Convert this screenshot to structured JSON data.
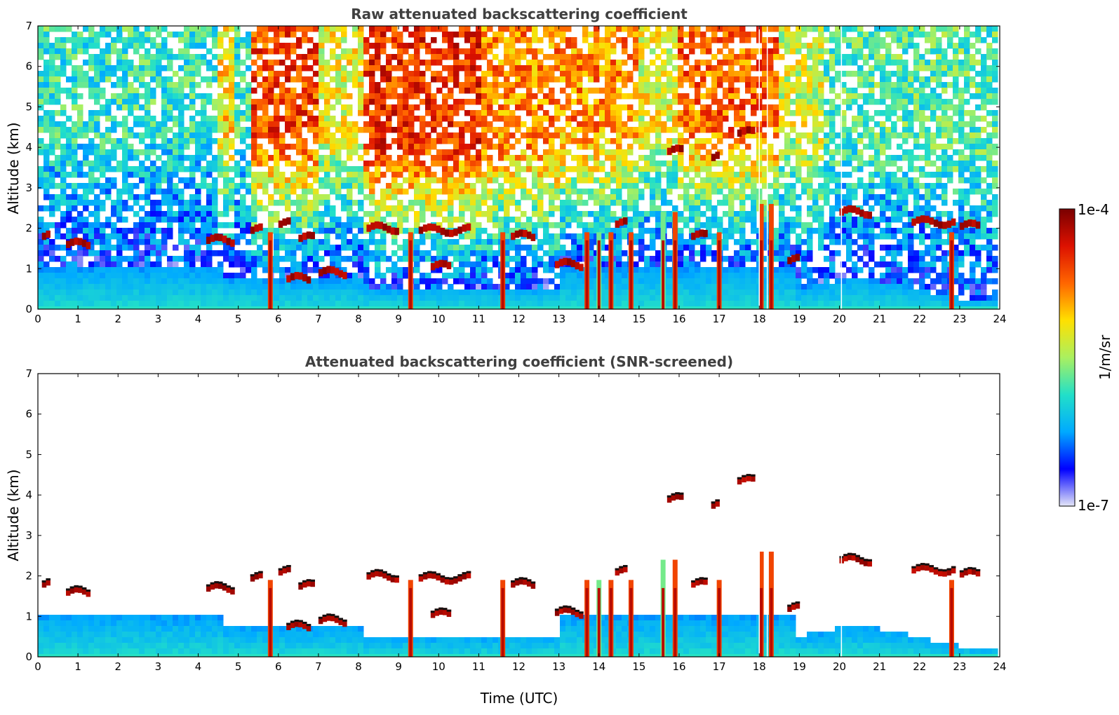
{
  "chart_data": [
    {
      "type": "heatmap",
      "title": "Raw attenuated backscattering coefficient",
      "xlabel": "",
      "ylabel": "Altitude (km)",
      "xlim": [
        0,
        24
      ],
      "ylim": [
        0,
        7
      ],
      "xticks": [
        "0",
        "1",
        "2",
        "3",
        "4",
        "5",
        "6",
        "7",
        "8",
        "9",
        "10",
        "11",
        "12",
        "13",
        "14",
        "15",
        "16",
        "17",
        "18",
        "19",
        "20",
        "21",
        "22",
        "23",
        "24"
      ],
      "yticks": [
        "0",
        "1",
        "2",
        "3",
        "4",
        "5",
        "6",
        "7"
      ],
      "screened": false
    },
    {
      "type": "heatmap",
      "title": "Attenuated backscattering coefficient (SNR-screened)",
      "xlabel": "Time (UTC)",
      "ylabel": "Altitude (km)",
      "xlim": [
        0,
        24
      ],
      "ylim": [
        0,
        7
      ],
      "xticks": [
        "0",
        "1",
        "2",
        "3",
        "4",
        "5",
        "6",
        "7",
        "8",
        "9",
        "10",
        "11",
        "12",
        "13",
        "14",
        "15",
        "16",
        "17",
        "18",
        "19",
        "20",
        "21",
        "22",
        "23",
        "24"
      ],
      "yticks": [
        "0",
        "1",
        "2",
        "3",
        "4",
        "5",
        "6",
        "7"
      ],
      "screened": true
    }
  ],
  "colorbar": {
    "max_label": "1e-4",
    "min_label": "1e-7",
    "unit_label": "1/m/sr",
    "scale": "log",
    "colors": [
      "#e4e6f7",
      "#0000ff",
      "#00aaff",
      "#22e0c8",
      "#aaf060",
      "#ffe000",
      "#ff6600",
      "#dd1100",
      "#7a0000"
    ]
  },
  "features": {
    "dense_columns": [
      5.8,
      9.3,
      11.6,
      13.7,
      14.0,
      14.3,
      14.8,
      15.6,
      15.9,
      17.0,
      18.05,
      18.3,
      22.8
    ],
    "cloud_layers": [
      {
        "t0": 0.1,
        "t1": 0.3,
        "z": 1.8
      },
      {
        "t0": 0.7,
        "t1": 1.3,
        "z": 1.6
      },
      {
        "t0": 4.2,
        "t1": 4.9,
        "z": 1.7
      },
      {
        "t0": 5.3,
        "t1": 5.6,
        "z": 1.95
      },
      {
        "t0": 6.0,
        "t1": 6.3,
        "z": 2.1
      },
      {
        "t0": 6.5,
        "t1": 6.9,
        "z": 1.75
      },
      {
        "t0": 6.2,
        "t1": 6.8,
        "z": 0.75
      },
      {
        "t0": 7.0,
        "t1": 7.7,
        "z": 0.9
      },
      {
        "t0": 8.2,
        "t1": 9.0,
        "z": 2.0
      },
      {
        "t0": 9.5,
        "t1": 10.8,
        "z": 1.95
      },
      {
        "t0": 9.8,
        "t1": 10.3,
        "z": 1.05
      },
      {
        "t0": 11.8,
        "t1": 12.4,
        "z": 1.8
      },
      {
        "t0": 12.9,
        "t1": 13.6,
        "z": 1.1
      },
      {
        "t0": 14.4,
        "t1": 14.7,
        "z": 2.1
      },
      {
        "t0": 15.7,
        "t1": 16.1,
        "z": 3.9
      },
      {
        "t0": 16.3,
        "t1": 16.7,
        "z": 1.8
      },
      {
        "t0": 16.8,
        "t1": 17.0,
        "z": 3.75
      },
      {
        "t0": 17.45,
        "t1": 17.9,
        "z": 4.35
      },
      {
        "t0": 18.7,
        "t1": 19.0,
        "z": 1.2
      },
      {
        "t0": 20.0,
        "t1": 20.8,
        "z": 2.4
      },
      {
        "t0": 21.8,
        "t1": 22.9,
        "z": 2.15
      },
      {
        "t0": 23.0,
        "t1": 23.5,
        "z": 2.05
      }
    ],
    "gap_lines": [
      18.0,
      18.2,
      20.05
    ]
  }
}
